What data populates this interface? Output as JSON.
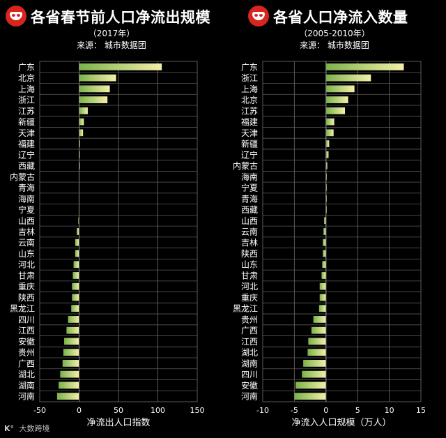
{
  "left_header": {
    "title": "各省春节前人口净流出规模",
    "subtitle": "（2017年）",
    "source": "来源：  城市数据团"
  },
  "right_header": {
    "title": "各省人口净流入数量",
    "subtitle": "（2005-2010年）",
    "source": "来源：  城市数据团"
  },
  "watermark": "大数跨境",
  "colors": {
    "bar_high": "#f4f0a8",
    "bar_low": "#7bb24b",
    "grid": "#5a5a5a",
    "accent": "#d6261f"
  },
  "chart_data": [
    {
      "type": "bar",
      "orientation": "horizontal",
      "title": "各省春节前人口净流出规模",
      "xlabel": "净流出人口指数",
      "xlim": [
        -50,
        150
      ],
      "xticks": [
        -50,
        0,
        50,
        100,
        150
      ],
      "grid": true,
      "categories": [
        "广东",
        "北京",
        "上海",
        "浙江",
        "江苏",
        "新疆",
        "天津",
        "福建",
        "辽宁",
        "西藏",
        "内蒙古",
        "青海",
        "海南",
        "宁夏",
        "山西",
        "吉林",
        "云南",
        "山东",
        "河北",
        "甘肃",
        "重庆",
        "陕西",
        "黑龙江",
        "四川",
        "江西",
        "安徽",
        "贵州",
        "广西",
        "湖北",
        "湖南",
        "河南"
      ],
      "values": [
        105,
        47,
        39,
        36,
        11,
        6,
        5,
        1,
        0,
        0,
        -0.5,
        -0.5,
        -0.5,
        -0.5,
        -1,
        -3,
        -5,
        -5,
        -7,
        -8,
        -9,
        -9,
        -10,
        -14,
        -16,
        -19,
        -20,
        -21,
        -24,
        -26,
        -28
      ]
    },
    {
      "type": "bar",
      "orientation": "horizontal",
      "title": "各省人口净流入数量",
      "xlabel": "净流入人口规模（万人）",
      "xlim": [
        -10,
        15
      ],
      "xticks": [
        -10,
        -5,
        0,
        5,
        10,
        15
      ],
      "grid": true,
      "categories": [
        "广东",
        "浙江",
        "上海",
        "北京",
        "江苏",
        "福建",
        "天津",
        "新疆",
        "辽宁",
        "内蒙古",
        "海南",
        "宁夏",
        "青海",
        "西藏",
        "山西",
        "云南",
        "吉林",
        "陕西",
        "山东",
        "甘肃",
        "河北",
        "重庆",
        "黑龙江",
        "贵州",
        "广西",
        "江西",
        "湖北",
        "湖南",
        "四川",
        "安徽",
        "河南"
      ],
      "values": [
        12.3,
        7.1,
        4.5,
        3.5,
        3.0,
        1.3,
        1.2,
        0.5,
        0.4,
        0.2,
        0,
        0,
        0,
        0,
        -0.3,
        -0.4,
        -0.5,
        -0.5,
        -0.6,
        -0.7,
        -1.0,
        -1.0,
        -1.1,
        -2.0,
        -2.3,
        -2.8,
        -2.9,
        -3.6,
        -3.8,
        -4.8,
        -5.0
      ]
    }
  ]
}
